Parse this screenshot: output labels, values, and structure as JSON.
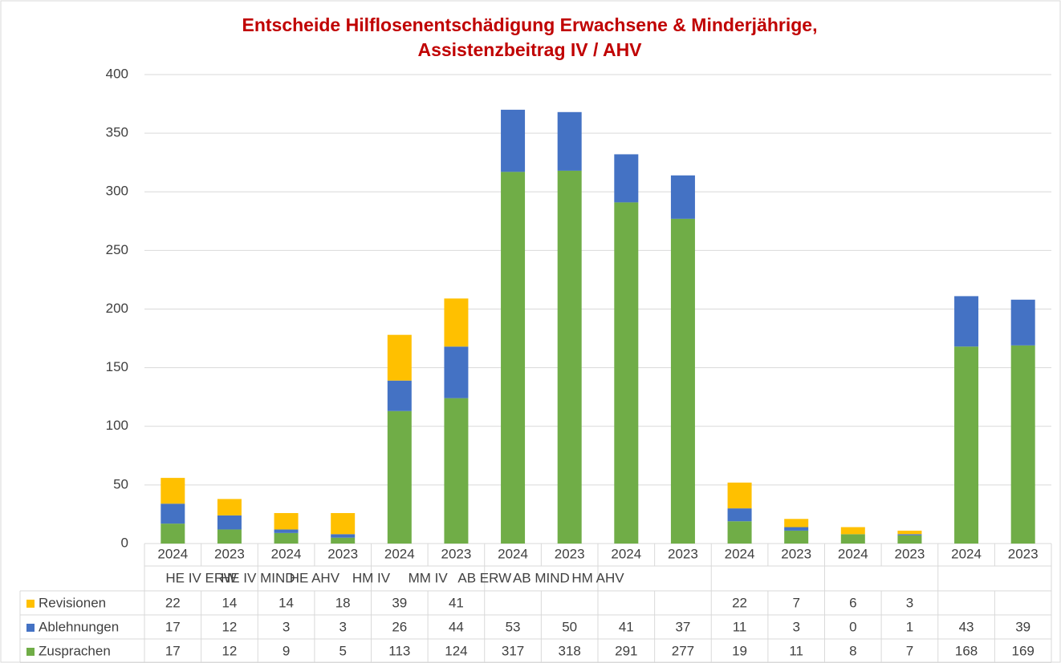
{
  "chart_data": {
    "type": "stacked_bar",
    "title": "Entscheide Hilflosenentschädigung Erwachsene & Minderjährige,",
    "subtitle": "Assistenzbeitrag IV / AHV",
    "categories": [
      "2024",
      "2023",
      "2024",
      "2023",
      "2024",
      "2023",
      "2024",
      "2023",
      "2024",
      "2023",
      "2024",
      "2023",
      "2024",
      "2023",
      "2024",
      "2023"
    ],
    "groups": [
      "HE IV ERW",
      "HE IV MIND",
      "HE AHV",
      "HM IV",
      "MM IV",
      "AB ERW",
      "AB MIND",
      "HM AHV"
    ],
    "series": [
      {
        "name": "Zusprachen",
        "color": "#70ad47",
        "values": [
          17,
          12,
          9,
          5,
          113,
          124,
          317,
          318,
          291,
          277,
          19,
          11,
          8,
          7,
          168,
          169
        ]
      },
      {
        "name": "Ablehnungen",
        "color": "#4472c4",
        "values": [
          17,
          12,
          3,
          3,
          26,
          44,
          53,
          50,
          41,
          37,
          11,
          3,
          0,
          1,
          43,
          39
        ]
      },
      {
        "name": "Revisionen",
        "color": "#ffc000",
        "values": [
          22,
          14,
          14,
          18,
          39,
          41,
          null,
          null,
          null,
          null,
          22,
          7,
          6,
          3,
          null,
          null
        ]
      }
    ],
    "ylim": [
      0,
      400
    ],
    "yticks": [
      0,
      50,
      100,
      150,
      200,
      250,
      300,
      350,
      400
    ],
    "grid": true
  }
}
